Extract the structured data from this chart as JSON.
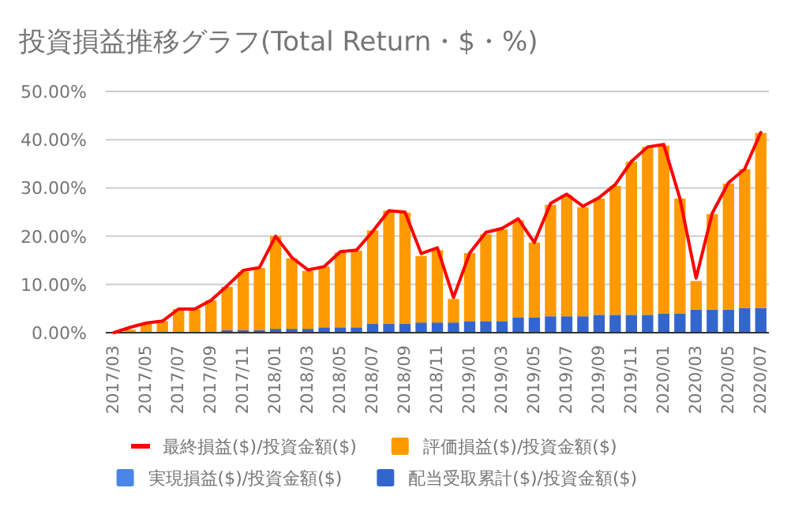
{
  "chart_data": {
    "type": "bar",
    "title": "投資損益推移グラフ(Total Return・$・%)",
    "categories": [
      "2017/03",
      null,
      "2017/05",
      null,
      "2017/07",
      null,
      "2017/09",
      null,
      "2017/11",
      null,
      "2018/01",
      null,
      "2018/03",
      null,
      "2018/05",
      null,
      "2018/07",
      null,
      "2018/09",
      null,
      "2018/11",
      null,
      "2019/01",
      null,
      "2019/03",
      null,
      "2019/05",
      null,
      "2019/07",
      null,
      "2019/09",
      null,
      "2019/11",
      null,
      "2020/01",
      null,
      "2020/03",
      null,
      "2020/05",
      null,
      "2020/07"
    ],
    "stacked": true,
    "series": [
      {
        "name": "最終損益($)/投資金額($)",
        "type": "line",
        "color": "#ff0000",
        "values": [
          0,
          1.1,
          2.0,
          2.4,
          4.9,
          4.9,
          6.7,
          9.7,
          12.9,
          13.5,
          20.0,
          15.6,
          13.0,
          13.7,
          16.8,
          17.1,
          21.0,
          25.3,
          25.0,
          16.4,
          17.6,
          7.3,
          16.5,
          20.8,
          21.6,
          23.6,
          18.7,
          26.8,
          28.7,
          26.2,
          28.0,
          30.7,
          35.5,
          38.5,
          39.0,
          27.8,
          11.3,
          24.8,
          31.1,
          33.9,
          41.5
        ]
      },
      {
        "name": "配当受取累計($)/投資金額($)",
        "color": "#3366cc",
        "values": [
          0,
          0,
          0,
          0,
          0,
          0,
          0,
          0.5,
          0.5,
          0.5,
          0.8,
          0.8,
          0.8,
          1.1,
          1.1,
          1.1,
          1.8,
          1.8,
          1.8,
          2.1,
          2.1,
          2.1,
          2.4,
          2.4,
          2.4,
          3.2,
          3.2,
          3.4,
          3.4,
          3.4,
          3.7,
          3.7,
          3.7,
          3.7,
          4.0,
          4.0,
          4.8,
          4.8,
          4.8,
          5.1,
          5.1
        ]
      },
      {
        "name": "実現損益($)/投資金額($)",
        "color": "#4a86e8",
        "values": [
          0,
          0,
          0,
          0,
          0,
          0,
          0,
          0,
          0,
          0,
          0,
          0,
          0,
          0,
          0,
          0,
          0,
          0,
          0,
          0,
          0,
          0,
          0,
          0,
          0,
          0,
          0,
          0,
          0,
          0,
          0,
          0,
          0,
          0,
          0,
          0,
          0,
          0,
          0,
          0,
          0
        ]
      },
      {
        "name": "評価損益($)/投資金額($)",
        "color": "#ff9900",
        "values": [
          0,
          0.6,
          2.0,
          2.4,
          4.9,
          4.9,
          6.7,
          9.0,
          12.1,
          12.9,
          19.2,
          14.6,
          12.0,
          12.6,
          15.5,
          15.9,
          19.4,
          23.5,
          23.1,
          13.8,
          15.0,
          4.9,
          14.1,
          18.0,
          19.0,
          20.1,
          15.5,
          23.1,
          25.1,
          22.6,
          24.1,
          26.7,
          31.7,
          34.8,
          34.8,
          23.8,
          5.9,
          19.8,
          26.1,
          28.8,
          36.3
        ]
      }
    ],
    "ylim": [
      0,
      50
    ],
    "yticks": [
      {
        "value": 0,
        "label": "0.00%"
      },
      {
        "value": 10,
        "label": "10.00%"
      },
      {
        "value": 20,
        "label": "20.00%"
      },
      {
        "value": 30,
        "label": "30.00%"
      },
      {
        "value": 40,
        "label": "40.00%"
      },
      {
        "value": 50,
        "label": "50.00%"
      }
    ],
    "grid": "y",
    "legend": "bottom"
  }
}
